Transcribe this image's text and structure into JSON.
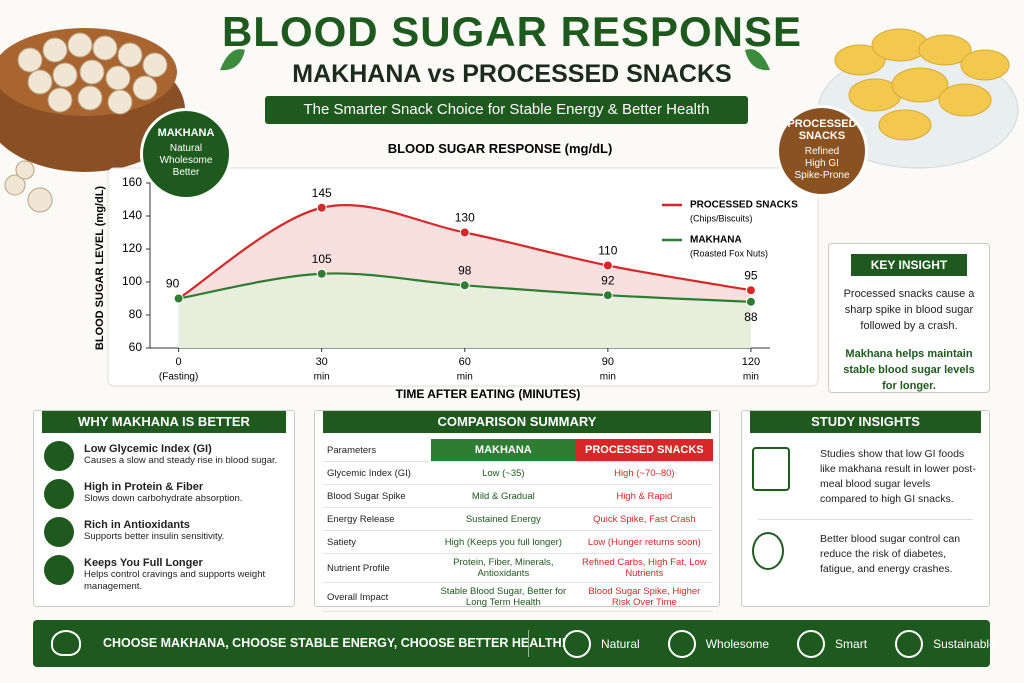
{
  "header": {
    "title": "BLOOD SUGAR RESPONSE",
    "subtitle": "MAKHANA vs PROCESSED SNACKS",
    "tagline": "The Smarter Snack Choice for Stable Energy & Better Health"
  },
  "badges": {
    "makhana": {
      "title": "MAKHANA",
      "lines": [
        "Natural",
        "Wholesome",
        "Better"
      ]
    },
    "processed": {
      "title": [
        "PROCESSED",
        "SNACKS"
      ],
      "lines": [
        "Refined",
        "High GI",
        "Spike-Prone"
      ]
    }
  },
  "chart_data": {
    "type": "line",
    "title": "BLOOD SUGAR RESPONSE (mg/dL)",
    "x_label": "TIME AFTER EATING (MINUTES)",
    "y_label": "BLOOD SUGAR LEVEL (mg/dL)",
    "x": [
      0,
      30,
      60,
      90,
      120
    ],
    "xlim": [
      -6,
      124
    ],
    "xticks": [
      0,
      30,
      60,
      90,
      120
    ],
    "xtick_sublabels": [
      "(Fasting)",
      "min",
      "min",
      "min",
      "min"
    ],
    "ylim": [
      60,
      160
    ],
    "yticks": [
      60,
      80,
      100,
      120,
      140,
      160
    ],
    "grid": false,
    "series": [
      {
        "name": "PROCESSED SNACKS",
        "sublabel": "(Chips/Biscuits)",
        "color": "#d62828",
        "area_color": "#f9dcdc",
        "values": [
          90,
          145,
          130,
          110,
          95
        ]
      },
      {
        "name": "MAKHANA",
        "sublabel": "(Roasted Fox Nuts)",
        "color": "#2e7d32",
        "area_color": "#e6f0dc",
        "values": [
          90,
          105,
          98,
          92,
          88
        ]
      }
    ]
  },
  "key_insight": {
    "title": "KEY INSIGHT",
    "text1": "Processed snacks cause a sharp spike in blood sugar followed by a crash.",
    "text2": "Makhana helps maintain stable blood sugar levels for longer."
  },
  "why": {
    "title": "WHY MAKHANA IS BETTER",
    "items": [
      {
        "title": "Low Glycemic Index (GI)",
        "text": "Causes a slow and steady rise in blood sugar."
      },
      {
        "title": "High in Protein & Fiber",
        "text": "Slows down carbohydrate absorption."
      },
      {
        "title": "Rich in Antioxidants",
        "text": "Supports better insulin sensitivity."
      },
      {
        "title": "Keeps You Full Longer",
        "text": "Helps control cravings and supports weight management."
      }
    ]
  },
  "comparison": {
    "title": "COMPARISON SUMMARY",
    "header": [
      "Parameters",
      "MAKHANA",
      "PROCESSED SNACKS"
    ],
    "rows": [
      [
        "Glycemic Index (GI)",
        "Low (~35)",
        "High (~70–80)"
      ],
      [
        "Blood Sugar Spike",
        "Mild & Gradual",
        "High & Rapid"
      ],
      [
        "Energy Release",
        "Sustained Energy",
        "Quick Spike, Fast Crash"
      ],
      [
        "Satiety",
        "High (Keeps you full longer)",
        "Low (Hunger returns soon)"
      ],
      [
        "Nutrient Profile",
        "Protein, Fiber, Minerals, Antioxidants",
        "Refined Carbs, High Fat, Low Nutrients"
      ],
      [
        "Overall Impact",
        "Stable Blood Sugar, Better for Long Term Health",
        "Blood Sugar Spike, Higher Risk Over Time"
      ]
    ]
  },
  "study": {
    "title": "STUDY INSIGHTS",
    "items": [
      "Studies show that low GI foods like makhana result in lower post-meal blood sugar levels compared to high GI snacks.",
      "Better blood sugar control can reduce the risk of diabetes, fatigue, and energy crashes."
    ]
  },
  "footer": {
    "slogan": "CHOOSE MAKHANA, CHOOSE STABLE ENERGY, CHOOSE BETTER HEALTH!",
    "badges": [
      "Natural",
      "Wholesome",
      "Smart",
      "Sustainable"
    ]
  }
}
